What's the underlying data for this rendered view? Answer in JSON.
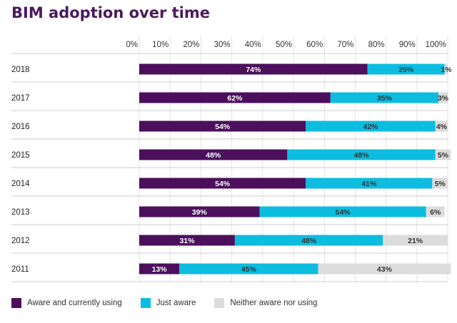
{
  "chart_data": {
    "type": "bar",
    "orientation": "horizontal",
    "stacked": true,
    "title": "BIM adoption over time",
    "x_ticks": [
      "0%",
      "10%",
      "20%",
      "30%",
      "40%",
      "50%",
      "60%",
      "70%",
      "80%",
      "90%",
      "100%"
    ],
    "xlim": [
      0,
      100
    ],
    "categories": [
      "2018",
      "2017",
      "2016",
      "2015",
      "2014",
      "2013",
      "2012",
      "2011"
    ],
    "series": [
      {
        "name": "Aware and currently using",
        "color": "#4b0f5c",
        "values": [
          74,
          62,
          54,
          48,
          54,
          39,
          31,
          13
        ]
      },
      {
        "name": "Just aware",
        "color": "#0cbde0",
        "values": [
          25,
          35,
          42,
          48,
          41,
          54,
          48,
          45
        ]
      },
      {
        "name": "Neither aware nor using",
        "color": "#dcdcdc",
        "values": [
          1,
          3,
          4,
          5,
          5,
          6,
          21,
          43
        ]
      }
    ],
    "value_labels": [
      [
        "74%",
        "25%",
        "1%"
      ],
      [
        "62%",
        "35%",
        "3%"
      ],
      [
        "54%",
        "42%",
        "4%"
      ],
      [
        "48%",
        "48%",
        "5%"
      ],
      [
        "54%",
        "41%",
        "5%"
      ],
      [
        "39%",
        "54%",
        "6%"
      ],
      [
        "31%",
        "48%",
        "21%"
      ],
      [
        "13%",
        "45%",
        "43%"
      ]
    ],
    "grid": true,
    "legend_position": "bottom"
  }
}
